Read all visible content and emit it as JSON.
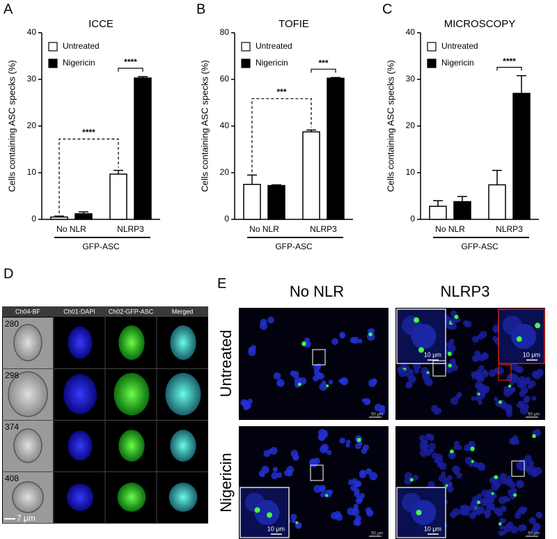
{
  "chart_data": [
    {
      "type": "bar",
      "panel": "A",
      "title": "ICCE",
      "y_label": "Cells containing ASC specks (%)",
      "categories": [
        "No NLR",
        "NLRP3"
      ],
      "group_label": "GFP-ASC",
      "ylim": [
        0,
        40
      ],
      "yticks": [
        0,
        10,
        20,
        30,
        40
      ],
      "series": [
        {
          "name": "Untreated",
          "color": "#ffffff",
          "values": [
            0.5,
            9.7
          ],
          "errors": [
            0.2,
            0.8
          ]
        },
        {
          "name": "Nigericin",
          "color": "#000000",
          "values": [
            1.2,
            30.3
          ],
          "errors": [
            0.4,
            0.3
          ]
        }
      ],
      "annotations": [
        {
          "text": "****",
          "style": "dashed",
          "between": [
            [
              "Untreated",
              "No NLR"
            ],
            [
              "Untreated",
              "NLRP3"
            ]
          ]
        },
        {
          "text": "****",
          "style": "solid",
          "between": [
            [
              "Untreated",
              "NLRP3"
            ],
            [
              "Nigericin",
              "NLRP3"
            ]
          ]
        }
      ]
    },
    {
      "type": "bar",
      "panel": "B",
      "title": "TOFIE",
      "y_label": "Cells containing ASC specks (%)",
      "categories": [
        "No NLR",
        "NLRP3"
      ],
      "group_label": "GFP-ASC",
      "ylim": [
        0,
        80
      ],
      "yticks": [
        0,
        20,
        40,
        60,
        80
      ],
      "series": [
        {
          "name": "Untreated",
          "color": "#ffffff",
          "values": [
            15,
            37.5
          ],
          "errors": [
            4,
            0.8
          ]
        },
        {
          "name": "Nigericin",
          "color": "#000000",
          "values": [
            14.5,
            60.5
          ],
          "errors": [
            0.3,
            0.3
          ]
        }
      ],
      "annotations": [
        {
          "text": "***",
          "style": "dashed",
          "between": [
            [
              "Untreated",
              "No NLR"
            ],
            [
              "Untreated",
              "NLRP3"
            ]
          ]
        },
        {
          "text": "***",
          "style": "solid",
          "between": [
            [
              "Untreated",
              "NLRP3"
            ],
            [
              "Nigericin",
              "NLRP3"
            ]
          ]
        }
      ]
    },
    {
      "type": "bar",
      "panel": "C",
      "title": "MICROSCOPY",
      "y_label": "Cells containing ASC specks (%)",
      "categories": [
        "No NLR",
        "NLRP3"
      ],
      "group_label": "GFP-ASC",
      "ylim": [
        0,
        40
      ],
      "yticks": [
        0,
        10,
        20,
        30,
        40
      ],
      "series": [
        {
          "name": "Untreated",
          "color": "#ffffff",
          "values": [
            2.8,
            7.4
          ],
          "errors": [
            1.2,
            3.1
          ]
        },
        {
          "name": "Nigericin",
          "color": "#000000",
          "values": [
            3.8,
            27
          ],
          "errors": [
            1.1,
            3.8
          ]
        }
      ],
      "annotations": [
        {
          "text": "****",
          "style": "solid",
          "between": [
            [
              "Untreated",
              "NLRP3"
            ],
            [
              "Nigericin",
              "NLRP3"
            ]
          ]
        }
      ]
    }
  ],
  "panel_d": {
    "label": "D",
    "columns": [
      "Ch04-BF",
      "Ch01-DAPI",
      "Ch02-GFP-ASC",
      "Merged"
    ],
    "event_ids": [
      "280",
      "298",
      "374",
      "408"
    ],
    "scale_bar": "7 μm"
  },
  "panel_e": {
    "label": "E",
    "columns": [
      "No NLR",
      "NLRP3"
    ],
    "rows": [
      "Untreated",
      "Nigericin"
    ],
    "inset_scale": "10 μm",
    "image_scale": "50 μm"
  }
}
